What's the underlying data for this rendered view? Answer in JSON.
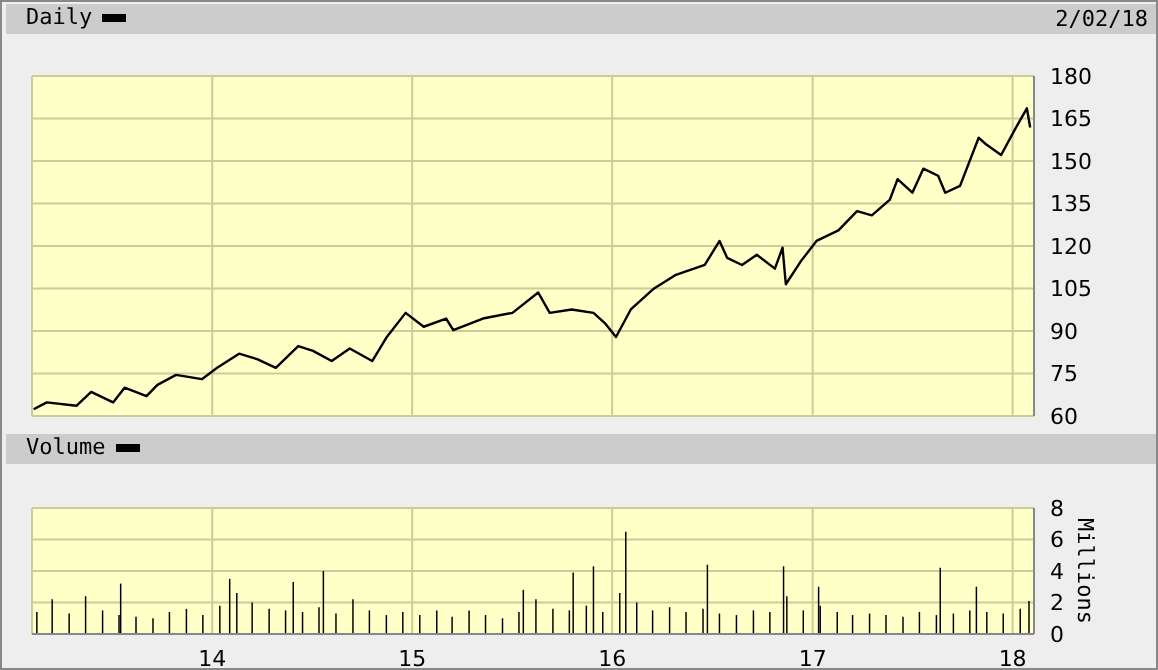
{
  "chart_data": [
    {
      "type": "line",
      "legend": "top left",
      "grid": true,
      "tick_labels": "y",
      "annotations": [
        "2/02/18"
      ],
      "xlim": [
        "2013-02-06",
        "2018-02-09"
      ],
      "xticks": [
        {
          "value": "2014-01-01",
          "label": null
        },
        {
          "value": "2015-01-01",
          "label": null
        },
        {
          "value": "2016-01-01",
          "label": null
        },
        {
          "value": "2017-01-01",
          "label": null
        },
        {
          "value": "2018-01-01",
          "label": null
        }
      ],
      "ylim": [
        60,
        180
      ],
      "yticks": [
        60,
        75,
        90,
        105,
        120,
        135,
        150,
        165,
        180
      ],
      "x": [
        "2013-02-09",
        "2013-03-05",
        "2013-04-28",
        "2013-05-25",
        "2013-07-04",
        "2013-07-25",
        "2013-09-03",
        "2013-09-23",
        "2013-10-27",
        "2013-12-13",
        "2014-01-10",
        "2014-02-19",
        "2014-03-25",
        "2014-04-27",
        "2014-06-07",
        "2014-07-04",
        "2014-08-07",
        "2014-09-09",
        "2014-10-20",
        "2014-11-16",
        "2014-12-20",
        "2015-01-22",
        "2015-03-04",
        "2015-03-17",
        "2015-05-10",
        "2015-07-03",
        "2015-08-19",
        "2015-09-09",
        "2015-10-19",
        "2015-11-28",
        "2015-12-19",
        "2016-01-08",
        "2016-02-04",
        "2016-03-16",
        "2016-04-25",
        "2016-06-18",
        "2016-07-15",
        "2016-07-29",
        "2016-08-25",
        "2016-09-21",
        "2016-10-24",
        "2016-11-07",
        "2016-11-13",
        "2016-12-10",
        "2017-01-08",
        "2017-02-17",
        "2017-03-23",
        "2017-04-19",
        "2017-05-22",
        "2017-06-05",
        "2017-07-02",
        "2017-07-22",
        "2017-08-18",
        "2017-08-31",
        "2017-09-27",
        "2017-10-31",
        "2017-11-14",
        "2017-12-11",
        "2018-01-07",
        "2018-01-27",
        "2018-02-02"
      ],
      "series": [
        {
          "name": "Daily",
          "color": "#000000",
          "values": [
            62.4,
            64.8,
            63.6,
            68.5,
            64.8,
            70,
            67,
            71,
            74.5,
            73,
            77,
            82,
            80,
            77,
            84.7,
            83,
            79.4,
            83.8,
            79.4,
            88,
            96.4,
            91.5,
            94.4,
            90.3,
            94.4,
            96.4,
            103.6,
            96.4,
            97.6,
            96.4,
            92.7,
            87.9,
            97.6,
            104.8,
            109.7,
            113.3,
            121.8,
            115.8,
            113.3,
            116.9,
            112,
            119.4,
            106.5,
            114.5,
            121.8,
            125.5,
            132.3,
            130.8,
            136.4,
            143.6,
            138.8,
            147.3,
            144.8,
            138.8,
            141.2,
            158.2,
            155.8,
            152.1,
            161.8,
            168.6,
            161.8
          ]
        }
      ]
    },
    {
      "type": "bar",
      "legend": "top left",
      "grid": true,
      "ylabel": "Millions",
      "xlim": [
        "2013-02-06",
        "2018-02-09"
      ],
      "xticks": [
        {
          "value": "2014-01-01",
          "label": "14"
        },
        {
          "value": "2015-01-01",
          "label": "15"
        },
        {
          "value": "2016-01-01",
          "label": "16"
        },
        {
          "value": "2017-01-01",
          "label": "17"
        },
        {
          "value": "2018-01-01",
          "label": "18"
        }
      ],
      "ylim": [
        0,
        8
      ],
      "yticks": [
        0,
        2,
        4,
        6,
        8
      ],
      "x": [
        "2013-02-15",
        "2013-03-15",
        "2013-04-15",
        "2013-05-15",
        "2013-06-15",
        "2013-07-15",
        "2013-07-18",
        "2013-08-15",
        "2013-09-15",
        "2013-10-15",
        "2013-11-15",
        "2013-12-15",
        "2014-01-15",
        "2014-02-02",
        "2014-02-15",
        "2014-03-15",
        "2014-04-15",
        "2014-05-15",
        "2014-05-29",
        "2014-06-15",
        "2014-07-15",
        "2014-07-23",
        "2014-08-15",
        "2014-09-15",
        "2014-10-15",
        "2014-11-15",
        "2014-12-15",
        "2015-01-15",
        "2015-02-15",
        "2015-03-15",
        "2015-04-15",
        "2015-05-15",
        "2015-06-15",
        "2015-07-15",
        "2015-07-23",
        "2015-08-15",
        "2015-09-15",
        "2015-10-15",
        "2015-10-22",
        "2015-11-15",
        "2015-11-28",
        "2015-12-15",
        "2016-01-15",
        "2016-01-26",
        "2016-02-15",
        "2016-03-15",
        "2016-04-15",
        "2016-05-15",
        "2016-06-15",
        "2016-06-23",
        "2016-07-15",
        "2016-08-15",
        "2016-09-15",
        "2016-10-15",
        "2016-11-09",
        "2016-11-15",
        "2016-12-15",
        "2017-01-12",
        "2017-01-15",
        "2017-02-15",
        "2017-03-15",
        "2017-04-15",
        "2017-05-15",
        "2017-06-15",
        "2017-07-15",
        "2017-08-15",
        "2017-08-22",
        "2017-09-15",
        "2017-10-15",
        "2017-10-27",
        "2017-11-15",
        "2017-12-15",
        "2018-01-15",
        "2018-01-31"
      ],
      "series": [
        {
          "name": "Volume",
          "color": "#000000",
          "values": [
            1.4,
            2.2,
            1.3,
            2.4,
            1.5,
            1.2,
            3.2,
            1.1,
            1.0,
            1.4,
            1.6,
            1.2,
            1.8,
            3.5,
            2.6,
            2.0,
            1.6,
            1.5,
            3.3,
            1.4,
            1.7,
            4.0,
            1.3,
            2.2,
            1.5,
            1.2,
            1.4,
            1.2,
            1.5,
            1.1,
            1.5,
            1.2,
            1.0,
            1.4,
            2.8,
            2.2,
            1.6,
            1.5,
            3.9,
            1.8,
            4.3,
            1.4,
            2.6,
            6.5,
            2.0,
            1.5,
            1.7,
            1.4,
            1.6,
            4.4,
            1.3,
            1.2,
            1.5,
            1.4,
            4.3,
            2.4,
            1.5,
            3.0,
            1.8,
            1.4,
            1.2,
            1.3,
            1.2,
            1.1,
            1.4,
            1.2,
            4.2,
            1.3,
            1.5,
            3.0,
            1.4,
            1.3,
            1.6,
            2.1
          ]
        }
      ]
    }
  ]
}
